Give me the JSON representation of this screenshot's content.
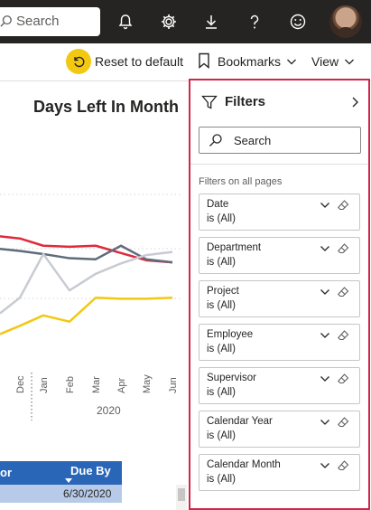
{
  "topbar": {
    "search_placeholder": "Search",
    "icons": [
      "bell-icon",
      "gear-icon",
      "download-icon",
      "help-icon",
      "smiley-icon"
    ]
  },
  "actionbar": {
    "reset_label": "Reset to default",
    "bookmarks_label": "Bookmarks",
    "view_label": "View"
  },
  "report": {
    "chart_title": "Days Left In Month",
    "year": "2020",
    "months": [
      "Dec",
      "Jan",
      "Feb",
      "Mar",
      "Apr",
      "May",
      "Jun"
    ],
    "table": {
      "col1": "or",
      "col2": "Due By",
      "row1_date": "6/30/2020"
    }
  },
  "chart_data": {
    "type": "line",
    "title": "Days Left In Month",
    "categories": [
      "Dec",
      "Jan",
      "Feb",
      "Mar",
      "Apr",
      "May",
      "Jun"
    ],
    "series": [
      {
        "values": [
          62,
          55,
          54,
          55,
          48,
          41,
          39
        ],
        "color": "#e02a3b"
      },
      {
        "values": [
          50,
          47,
          43,
          42,
          55,
          42,
          39
        ],
        "color": "#5f6b7a"
      },
      {
        "values": [
          5,
          47,
          12,
          28,
          38,
          46,
          49
        ],
        "color": "#c8cbd2"
      },
      {
        "values": [
          -22,
          -12,
          -18,
          5,
          4,
          4,
          5
        ],
        "color": "#f2c811"
      }
    ],
    "grid": true
  },
  "filters": {
    "title": "Filters",
    "search_placeholder": "Search",
    "section_label": "Filters on all pages",
    "cards": [
      {
        "name": "Date",
        "value": "is (All)"
      },
      {
        "name": "Department",
        "value": "is (All)"
      },
      {
        "name": "Project",
        "value": "is (All)"
      },
      {
        "name": "Employee",
        "value": "is (All)"
      },
      {
        "name": "Supervisor",
        "value": "is (All)"
      },
      {
        "name": "Calendar Year",
        "value": "is (All)"
      },
      {
        "name": "Calendar Month",
        "value": "is (All)"
      }
    ]
  },
  "colors": {
    "topbar": "#252423",
    "accent_yellow": "#f2c811",
    "filters_border": "#d0264a",
    "table_header": "#2a66b8"
  }
}
